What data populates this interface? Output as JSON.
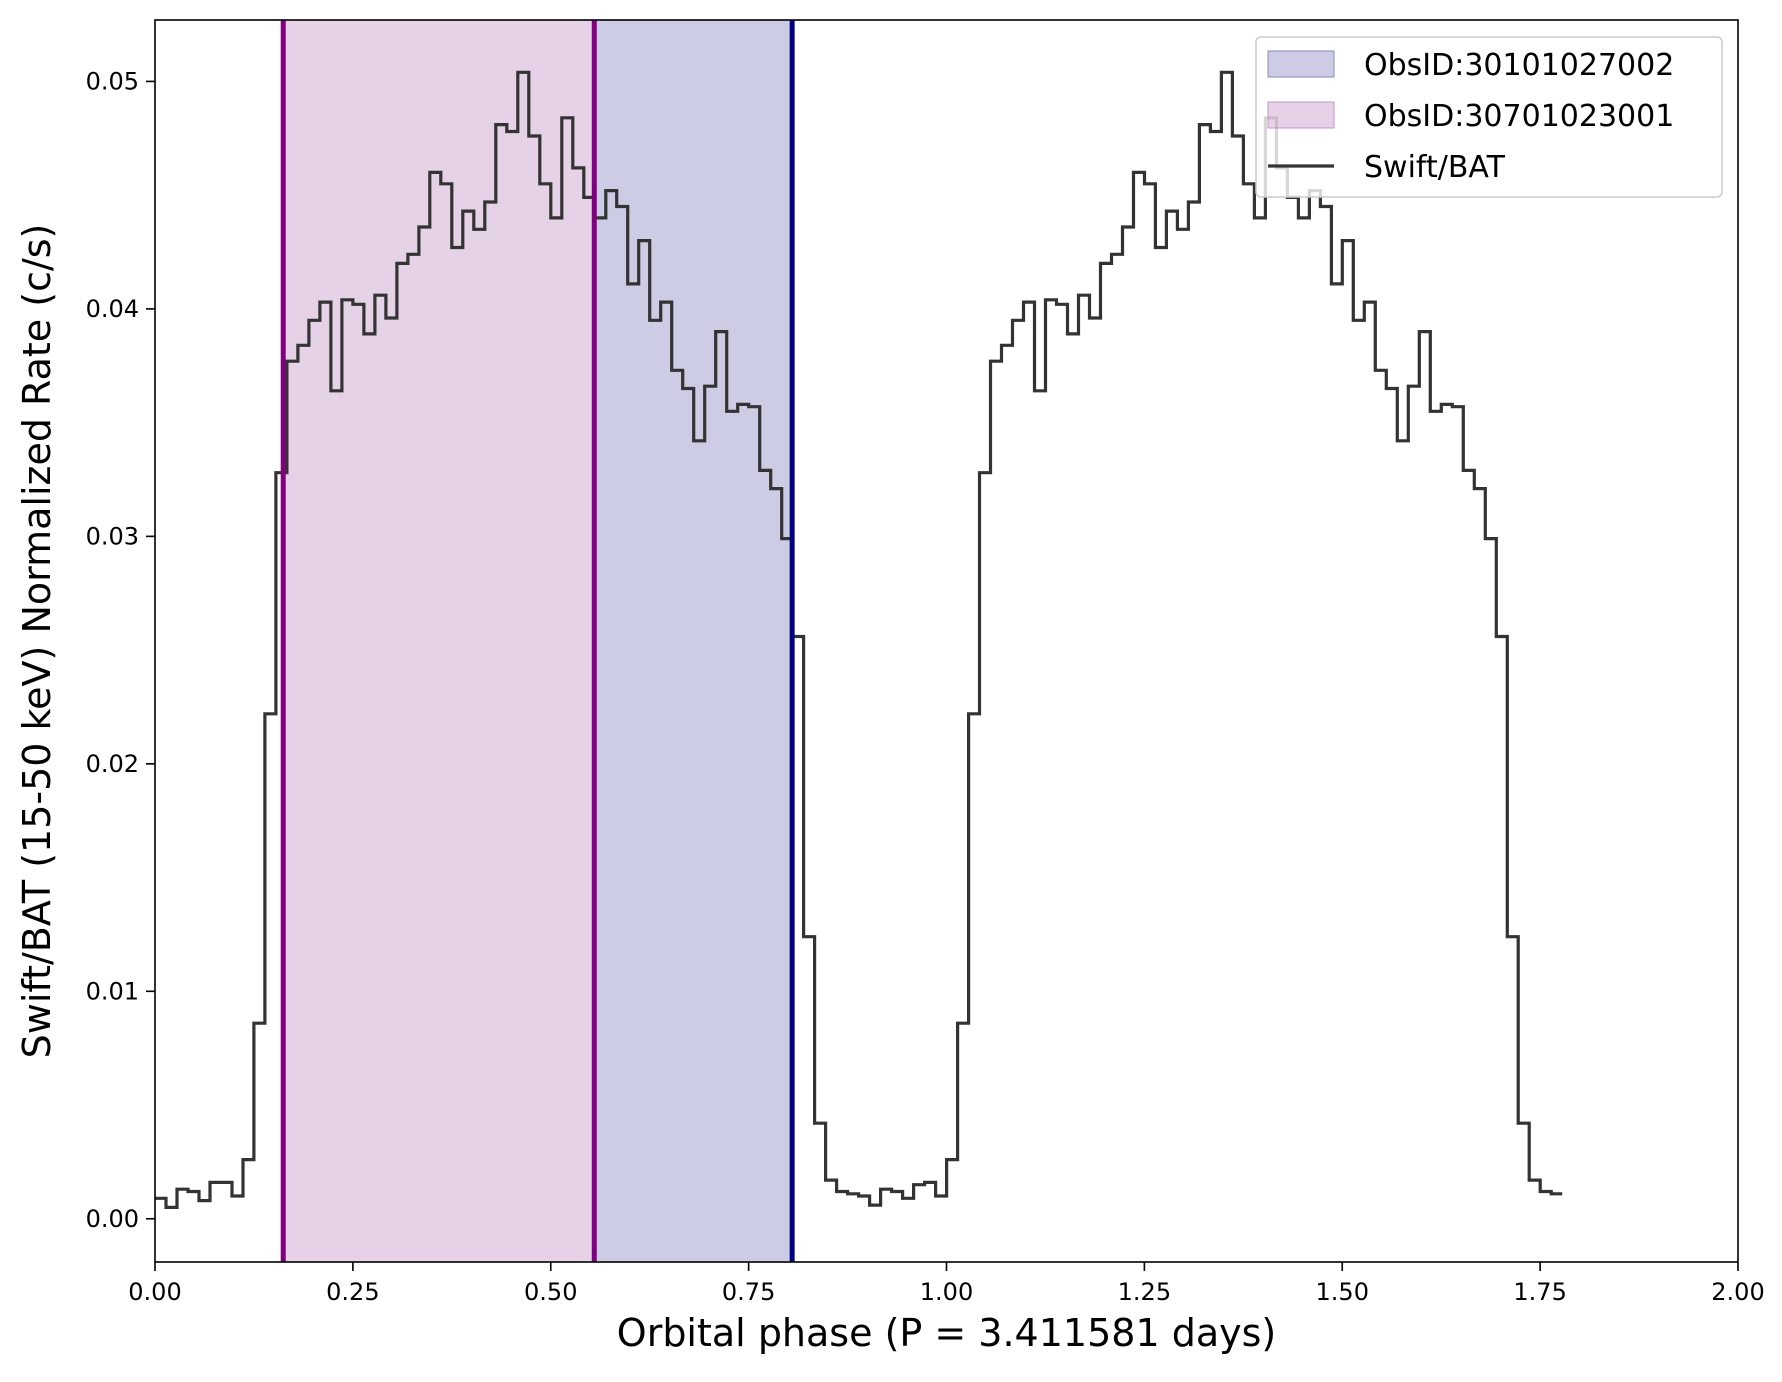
{
  "chart_data": {
    "type": "line",
    "subtype": "step",
    "xlabel": "Orbital phase (P = 3.411581 days)",
    "ylabel": "Swift/BAT (15-50 keV) Normalized Rate (c/s)",
    "xlim": [
      0.0,
      2.0
    ],
    "ylim": [
      -0.0019,
      0.0527
    ],
    "xticks": [
      0.0,
      0.25,
      0.5,
      0.75,
      1.0,
      1.25,
      1.5,
      1.75,
      2.0
    ],
    "xtick_labels": [
      "0.00",
      "0.25",
      "0.50",
      "0.75",
      "1.00",
      "1.25",
      "1.50",
      "1.75",
      "2.00"
    ],
    "yticks": [
      0.0,
      0.01,
      0.02,
      0.03,
      0.04,
      0.05
    ],
    "ytick_labels": [
      "0.00",
      "0.01",
      "0.02",
      "0.03",
      "0.04",
      "0.05"
    ],
    "grid": false,
    "legend_position": "top-right",
    "shaded_regions": [
      {
        "name": "ObsID:30101027002",
        "x_start": 0.555,
        "x_end": 0.805,
        "color": "#7f7fbf",
        "edge_color": "#000080"
      },
      {
        "name": "ObsID:30701023001",
        "x_start": 0.162,
        "x_end": 0.555,
        "color": "#c08fc4",
        "edge_color": "#800080"
      }
    ],
    "series": [
      {
        "name": "Swift/BAT",
        "color": "#333333",
        "bin_width": 0.01389,
        "values": [
          0.0009,
          0.0005,
          0.0013,
          0.0012,
          0.0008,
          0.0016,
          0.0016,
          0.001,
          0.0026,
          0.0086,
          0.0222,
          0.0328,
          0.0377,
          0.0384,
          0.0395,
          0.0403,
          0.0364,
          0.0404,
          0.0402,
          0.0389,
          0.0406,
          0.0396,
          0.042,
          0.0424,
          0.0436,
          0.046,
          0.0455,
          0.0427,
          0.0443,
          0.0435,
          0.0447,
          0.0481,
          0.0478,
          0.0504,
          0.0476,
          0.0455,
          0.044,
          0.0484,
          0.0462,
          0.0449,
          0.044,
          0.0452,
          0.0445,
          0.0411,
          0.043,
          0.0395,
          0.0403,
          0.0373,
          0.0365,
          0.0342,
          0.0366,
          0.039,
          0.0355,
          0.0358,
          0.0357,
          0.0329,
          0.0321,
          0.0299,
          0.0256,
          0.0124,
          0.0042,
          0.0017,
          0.0012,
          0.0011,
          0.001,
          0.0006,
          0.0013,
          0.0012,
          0.0009,
          0.0015,
          0.0016,
          0.001,
          0.0026,
          0.0086,
          0.0222,
          0.0328,
          0.0377,
          0.0384,
          0.0395,
          0.0403,
          0.0364,
          0.0404,
          0.0402,
          0.0389,
          0.0406,
          0.0396,
          0.042,
          0.0424,
          0.0436,
          0.046,
          0.0455,
          0.0427,
          0.0443,
          0.0435,
          0.0447,
          0.0481,
          0.0478,
          0.0504,
          0.0476,
          0.0455,
          0.044,
          0.0484,
          0.0462,
          0.0449,
          0.044,
          0.0452,
          0.0445,
          0.0411,
          0.043,
          0.0395,
          0.0403,
          0.0373,
          0.0365,
          0.0342,
          0.0366,
          0.039,
          0.0355,
          0.0358,
          0.0357,
          0.0329,
          0.0321,
          0.0299,
          0.0256,
          0.0124,
          0.0042,
          0.0017,
          0.0012,
          0.0011
        ]
      }
    ]
  }
}
